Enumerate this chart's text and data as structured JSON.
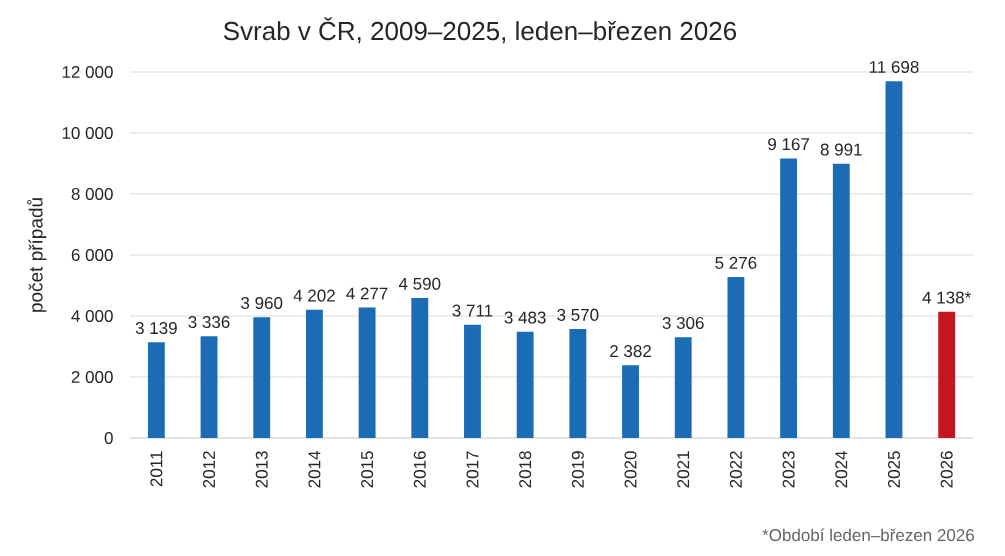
{
  "chart_data": {
    "type": "bar",
    "title": "Svrab v ČR, 2009–2025, leden–březen 2026",
    "ylabel": "počet případů",
    "categories": [
      "2011",
      "2012",
      "2013",
      "2014",
      "2015",
      "2016",
      "2017",
      "2018",
      "2019",
      "2020",
      "2021",
      "2022",
      "2023",
      "2024",
      "2025",
      "2026"
    ],
    "values": [
      3139,
      3336,
      3960,
      4202,
      4277,
      4590,
      3711,
      3483,
      3570,
      2382,
      3306,
      5276,
      9167,
      8991,
      11698,
      4138
    ],
    "colors": [
      "#1b6cb4",
      "#1b6cb4",
      "#1b6cb4",
      "#1b6cb4",
      "#1b6cb4",
      "#1b6cb4",
      "#1b6cb4",
      "#1b6cb4",
      "#1b6cb4",
      "#1b6cb4",
      "#1b6cb4",
      "#1b6cb4",
      "#1b6cb4",
      "#1b6cb4",
      "#1b6cb4",
      "#c3161f"
    ],
    "value_labels": [
      "3 139",
      "3 336",
      "3 960",
      "4 202",
      "4 277",
      "4 590",
      "3 711",
      "3 483",
      "3 570",
      "2 382",
      "3 306",
      "5 276",
      "9 167",
      "8 991",
      "11 698",
      "4 138*"
    ],
    "ylim": [
      0,
      12000
    ],
    "yticks": [
      0,
      {
        "value": 2000,
        "label": "2 000"
      },
      {
        "value": 4000,
        "label": "4 000"
      },
      {
        "value": 6000,
        "label": "6 000"
      },
      {
        "value": 8000,
        "label": "8 000"
      },
      {
        "value": 10000,
        "label": "10 000"
      },
      {
        "value": 12000,
        "label": "12 000"
      }
    ],
    "grid": "y",
    "annotations": [
      "*Období leden–březen 2026"
    ]
  }
}
